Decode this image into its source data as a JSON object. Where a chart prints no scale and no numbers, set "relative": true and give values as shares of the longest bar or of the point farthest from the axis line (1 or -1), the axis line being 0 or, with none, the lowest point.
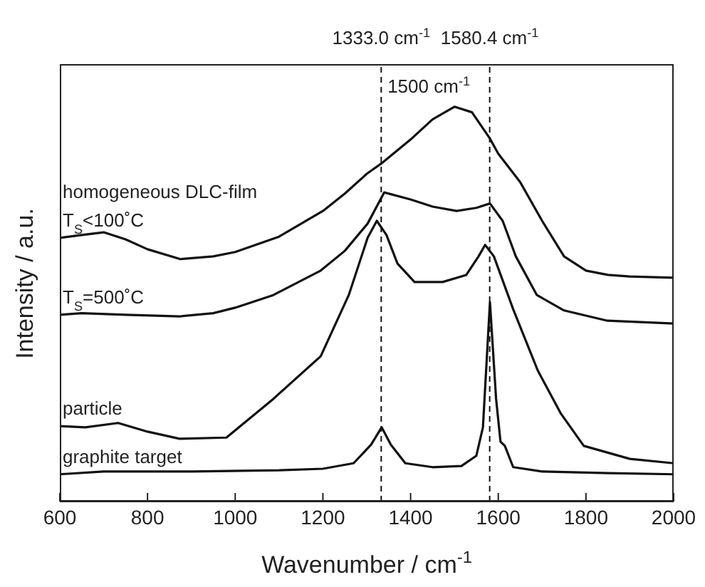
{
  "chart_data": {
    "type": "line",
    "relative": true,
    "xlabel": "Wavenumber / cm$^{-1}$",
    "ylabel": "Intensity / a.u.",
    "xlim": [
      600,
      2000
    ],
    "xticks": [
      600,
      800,
      1000,
      1200,
      1400,
      1600,
      1800,
      2000
    ],
    "series": [
      {
        "name": "homogeneous DLC-film",
        "color": "#111111",
        "x": [
          600,
          650,
          700,
          750,
          800,
          875,
          950,
          1000,
          1100,
          1200,
          1250,
          1300,
          1333,
          1400,
          1450,
          1500,
          1540,
          1580,
          1600,
          1650,
          1700,
          1750,
          1800,
          1850,
          1900,
          2000
        ],
        "values": [
          0.668,
          0.675,
          0.682,
          0.664,
          0.639,
          0.614,
          0.621,
          0.632,
          0.671,
          0.736,
          0.78,
          0.83,
          0.856,
          0.917,
          0.968,
          1,
          0.986,
          0.921,
          0.881,
          0.809,
          0.711,
          0.621,
          0.585,
          0.574,
          0.57,
          0.567
        ]
      },
      {
        "name": "T$_{S}$=500˚C",
        "color": "#111111",
        "x": [
          600,
          650,
          750,
          873,
          950,
          1000,
          1087,
          1195,
          1250,
          1302,
          1340,
          1400,
          1450,
          1505,
          1550,
          1581,
          1610,
          1640,
          1688,
          1750,
          1849,
          2000
        ],
        "values": [
          0.473,
          0.477,
          0.473,
          0.469,
          0.477,
          0.491,
          0.523,
          0.585,
          0.635,
          0.704,
          0.783,
          0.765,
          0.747,
          0.736,
          0.744,
          0.755,
          0.711,
          0.621,
          0.523,
          0.484,
          0.458,
          0.451
        ]
      },
      {
        "name": "particle",
        "color": "#111111",
        "x": [
          600,
          658,
          733,
          800,
          873,
          980,
          1087,
          1195,
          1259,
          1302,
          1323,
          1345,
          1370,
          1409,
          1473,
          1527,
          1555,
          1570,
          1590,
          1634,
          1690,
          1742,
          1795,
          1900,
          2000
        ],
        "values": [
          0.191,
          0.188,
          0.199,
          0.177,
          0.159,
          0.162,
          0.26,
          0.368,
          0.523,
          0.668,
          0.711,
          0.675,
          0.603,
          0.556,
          0.556,
          0.574,
          0.621,
          0.65,
          0.621,
          0.487,
          0.332,
          0.224,
          0.141,
          0.108,
          0.097
        ]
      },
      {
        "name": "graphite target",
        "color": "#111111",
        "x": [
          600,
          700,
          900,
          1100,
          1200,
          1270,
          1310,
          1334,
          1355,
          1388,
          1450,
          1516,
          1550,
          1565,
          1581,
          1595,
          1605,
          1615,
          1634,
          1700,
          1850,
          2000
        ],
        "values": [
          0.069,
          0.076,
          0.076,
          0.079,
          0.083,
          0.097,
          0.144,
          0.188,
          0.144,
          0.097,
          0.087,
          0.09,
          0.116,
          0.188,
          0.505,
          0.26,
          0.152,
          0.141,
          0.087,
          0.076,
          0.072,
          0.069
        ]
      }
    ],
    "ref_lines": [
      {
        "axis": "x",
        "value": 1333.0,
        "label": "1333.0 cm$^{-1}$",
        "line_style": "dashed",
        "color": "#111111"
      },
      {
        "axis": "x",
        "value": 1580.4,
        "label": "1580.4 cm$^{-1}$",
        "line_style": "dashed",
        "color": "#111111"
      }
    ],
    "annotations": [
      {
        "text": "T$_{S}$<100˚C",
        "x": 600,
        "y": 0.668
      },
      {
        "text": "1500 cm$^{-1}$",
        "x": 1500,
        "y": 1
      }
    ]
  }
}
